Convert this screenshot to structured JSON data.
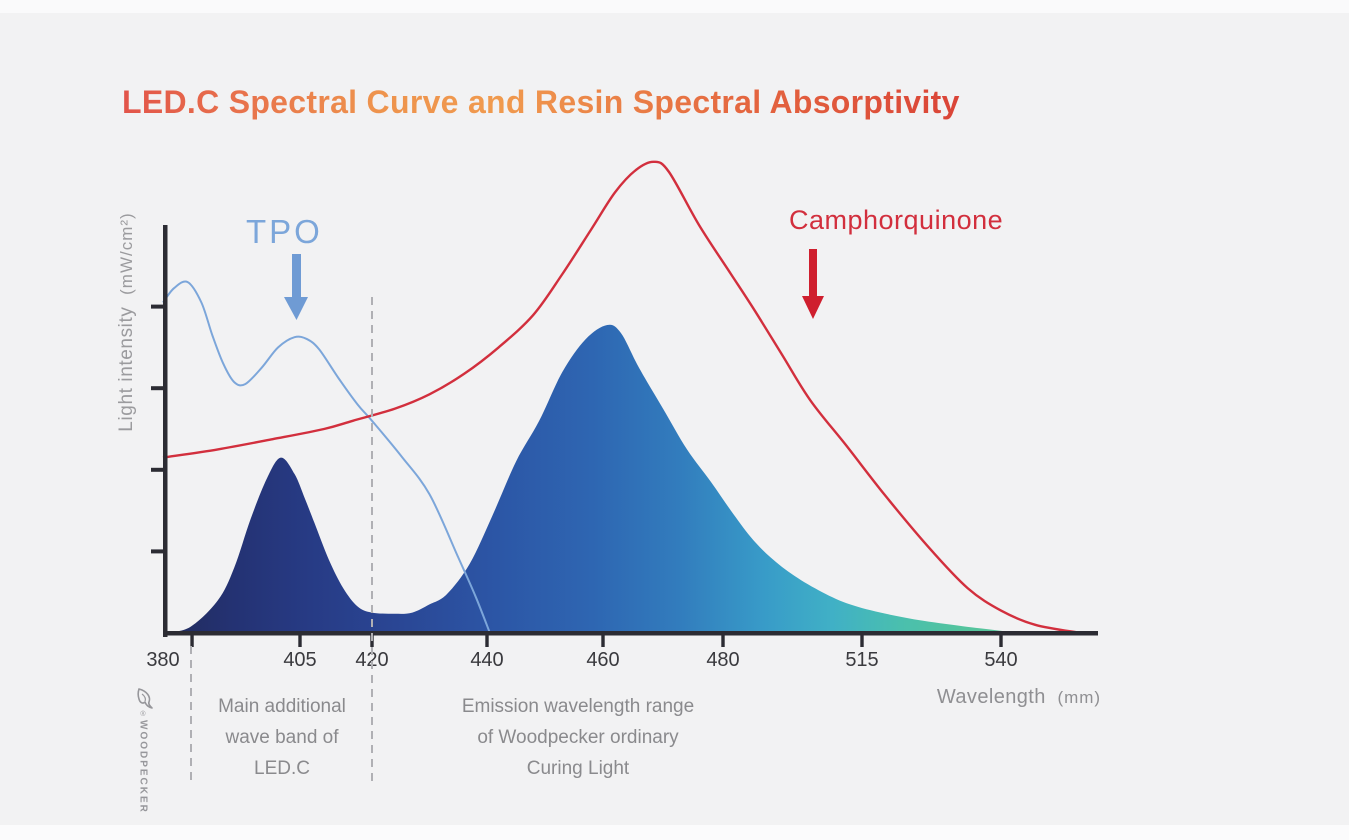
{
  "title": {
    "text": "LED.C Spectral Curve and Resin Spectral Absorptivity",
    "gradient": [
      "#e2544a",
      "#ee934d",
      "#f09a4e",
      "#e4653f",
      "#da4437"
    ]
  },
  "y_axis": {
    "label": "Light intensity",
    "unit": "(mW/cm²)",
    "unlabeled_tick_count": 4
  },
  "x_axis": {
    "label": "Wavelength",
    "unit": "(mm)",
    "ticks": [
      "380",
      "405",
      "420",
      "440",
      "460",
      "480",
      "515",
      "540"
    ]
  },
  "annotations": {
    "tpo_label": "TPO",
    "camphorquinone_label": "Camphorquinone",
    "band_note": "Main additional\nwave band of\nLED.C",
    "emission_note": "Emission wavelength range\nof Woodpecker ordinary\nCuring Light"
  },
  "logo": {
    "reg": "®",
    "word": "WOODPECKER"
  },
  "colors": {
    "axis": "#2c2c33",
    "tick_label": "#3a3a3e",
    "dashed_guide": "#b0b0b4",
    "tpo_line": "#7ca6da",
    "tpo_arrow": "#6f9bd4",
    "camphorquinone_line": "#d22f3d",
    "camphorquinone_arrow": "#cf1f2e",
    "background": "#f2f2f3"
  },
  "chart_data": {
    "type": "area+line",
    "title": "LED.C Spectral Curve and Resin Spectral Absorptivity",
    "xlabel": "Wavelength (mm)",
    "ylabel": "Light intensity (mW/cm²)",
    "x_ticks": [
      380,
      405,
      420,
      440,
      460,
      480,
      515,
      540
    ],
    "x_extra_unlabeled_tick": 385.3,
    "y_unit_note": "intensity as % of axis height (no numeric y labels shown); Camphorquinone peak exceeds axis top",
    "xlim": [
      380,
      557
    ],
    "ylim_percent": [
      0,
      100
    ],
    "grid": false,
    "legend": "inline text labels with arrows",
    "series": [
      {
        "name": "LED.C emission spectrum",
        "type": "area",
        "peaks": [
          {
            "x": 401.5,
            "y": 43
          },
          {
            "x": 460.7,
            "y": 75.5
          }
        ],
        "gradient": [
          {
            "at": 0.0,
            "color": "#212b5c"
          },
          {
            "at": 0.08,
            "color": "#243273"
          },
          {
            "at": 0.17,
            "color": "#273b85"
          },
          {
            "at": 0.27,
            "color": "#2a4694"
          },
          {
            "at": 0.38,
            "color": "#2c55a5"
          },
          {
            "at": 0.5,
            "color": "#2e66b2"
          },
          {
            "at": 0.6,
            "color": "#327cbd"
          },
          {
            "at": 0.7,
            "color": "#389bc8"
          },
          {
            "at": 0.78,
            "color": "#40b0c6"
          },
          {
            "at": 0.86,
            "color": "#4abfae"
          },
          {
            "at": 0.93,
            "color": "#53c49e"
          },
          {
            "at": 1.0,
            "color": "#5cc598"
          }
        ],
        "points": [
          [
            380.5,
            0
          ],
          [
            385,
            1.5
          ],
          [
            390,
            8
          ],
          [
            393,
            16
          ],
          [
            396,
            28
          ],
          [
            399,
            38
          ],
          [
            401.5,
            43
          ],
          [
            404,
            39
          ],
          [
            406,
            33
          ],
          [
            408,
            27
          ],
          [
            411,
            18
          ],
          [
            414,
            11
          ],
          [
            417,
            6.5
          ],
          [
            420,
            5
          ],
          [
            424,
            4.7
          ],
          [
            427,
            5
          ],
          [
            430,
            7
          ],
          [
            433,
            9.5
          ],
          [
            437,
            17
          ],
          [
            441,
            29
          ],
          [
            445,
            42
          ],
          [
            449,
            52
          ],
          [
            453,
            64
          ],
          [
            457,
            72
          ],
          [
            460.7,
            75.5
          ],
          [
            463,
            73.5
          ],
          [
            466,
            65
          ],
          [
            470,
            55
          ],
          [
            474,
            45
          ],
          [
            478,
            37
          ],
          [
            482,
            30
          ],
          [
            487,
            23.5
          ],
          [
            492,
            18.5
          ],
          [
            498,
            14
          ],
          [
            505,
            10
          ],
          [
            512,
            7
          ],
          [
            519,
            4.8
          ],
          [
            526,
            3
          ],
          [
            534,
            1.5
          ],
          [
            539,
            0.7
          ],
          [
            543,
            0
          ]
        ]
      },
      {
        "name": "TPO",
        "type": "line",
        "color": "#7ca6da",
        "points": [
          [
            380,
            81
          ],
          [
            382,
            84.5
          ],
          [
            384.5,
            86
          ],
          [
            387,
            81
          ],
          [
            389,
            73
          ],
          [
            391,
            66
          ],
          [
            393,
            61.5
          ],
          [
            395,
            61
          ],
          [
            398,
            65
          ],
          [
            401,
            70
          ],
          [
            404,
            72.5
          ],
          [
            406.5,
            72
          ],
          [
            409,
            69.5
          ],
          [
            413,
            62.5
          ],
          [
            417,
            56
          ],
          [
            420,
            52
          ],
          [
            425,
            43.5
          ],
          [
            430,
            34
          ],
          [
            435,
            18.5
          ],
          [
            438,
            9
          ],
          [
            440.5,
            0
          ]
        ]
      },
      {
        "name": "Camphorquinone",
        "type": "line",
        "color": "#d22f3d",
        "points": [
          [
            380,
            43
          ],
          [
            390,
            45
          ],
          [
            400,
            47.5
          ],
          [
            410,
            50
          ],
          [
            416,
            52
          ],
          [
            424,
            55
          ],
          [
            430,
            58.5
          ],
          [
            436,
            63.5
          ],
          [
            442,
            70
          ],
          [
            448,
            78
          ],
          [
            453,
            88
          ],
          [
            458,
            99
          ],
          [
            462,
            108
          ],
          [
            465.5,
            113.5
          ],
          [
            468.5,
            115.5
          ],
          [
            471,
            113
          ],
          [
            476,
            100
          ],
          [
            482,
            88
          ],
          [
            488,
            79
          ],
          [
            495,
            68
          ],
          [
            502,
            57
          ],
          [
            511,
            46
          ],
          [
            519,
            34
          ],
          [
            527,
            21
          ],
          [
            534,
            11
          ],
          [
            540,
            5.5
          ],
          [
            546,
            2
          ],
          [
            554,
            0
          ]
        ]
      }
    ]
  }
}
